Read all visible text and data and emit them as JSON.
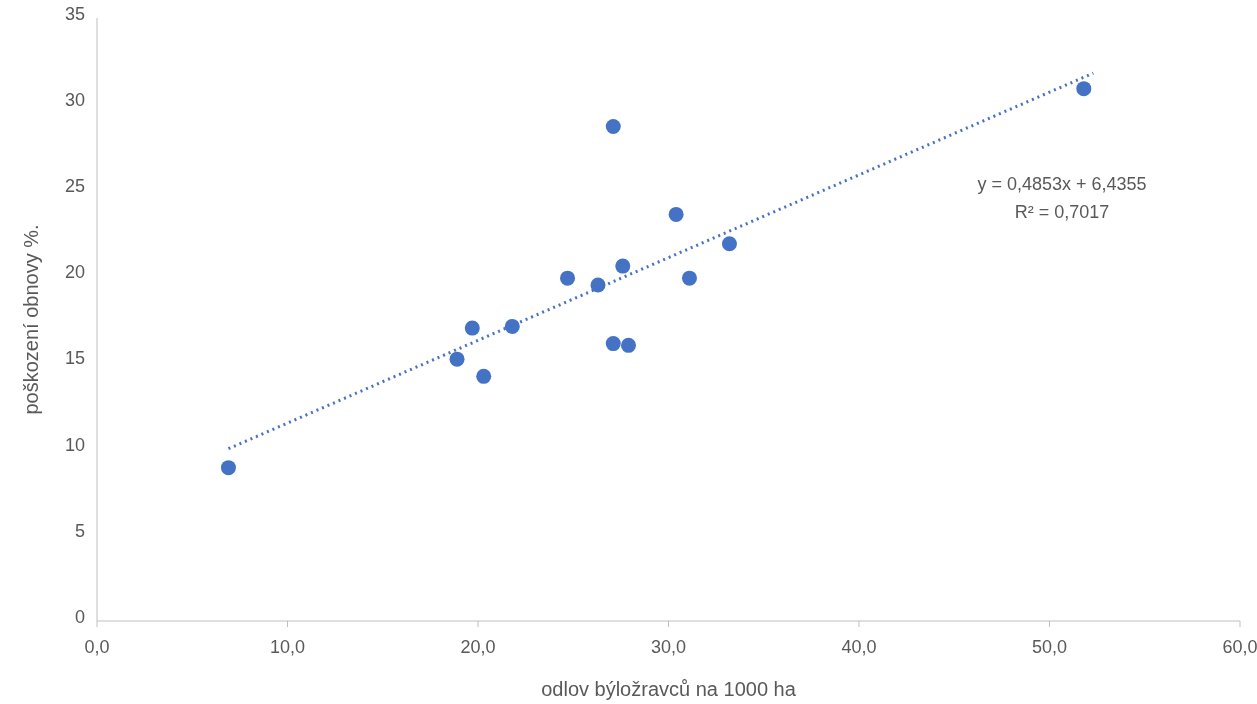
{
  "chart_data": {
    "type": "scatter",
    "xlabel": "odlov býložravců na 1000 ha",
    "ylabel": "poškození obnovy  %.",
    "xlim": [
      0,
      60
    ],
    "ylim": [
      0,
      35
    ],
    "xticks": [
      {
        "value": 0,
        "label": "0,0"
      },
      {
        "value": 10,
        "label": "10,0"
      },
      {
        "value": 20,
        "label": "20,0"
      },
      {
        "value": 30,
        "label": "30,0"
      },
      {
        "value": 40,
        "label": "40,0"
      },
      {
        "value": 50,
        "label": "50,0"
      },
      {
        "value": 60,
        "label": "60,0"
      }
    ],
    "yticks": [
      0,
      5,
      10,
      15,
      20,
      25,
      30,
      35
    ],
    "grid": false,
    "series": [
      {
        "color": "#4472c4",
        "marker": "circle",
        "x": [
          6.9,
          18.9,
          19.7,
          20.3,
          21.8,
          24.7,
          26.3,
          27.1,
          27.1,
          27.6,
          27.9,
          30.4,
          31.1,
          33.2,
          51.8
        ],
        "values": [
          8.9,
          15.2,
          17.0,
          14.2,
          17.1,
          19.9,
          19.5,
          28.7,
          16.1,
          20.6,
          16.0,
          23.6,
          19.9,
          21.9,
          30.9
        ]
      },
      {
        "type": "line",
        "color": "#4472c4",
        "line_style": "dotted",
        "marker": "none",
        "x": [
          6.9,
          52.3
        ],
        "values": [
          10.0,
          31.8
        ]
      }
    ],
    "annotations": [
      "y = 0,4853x + 6,4355",
      "R² = 0,7017"
    ]
  }
}
